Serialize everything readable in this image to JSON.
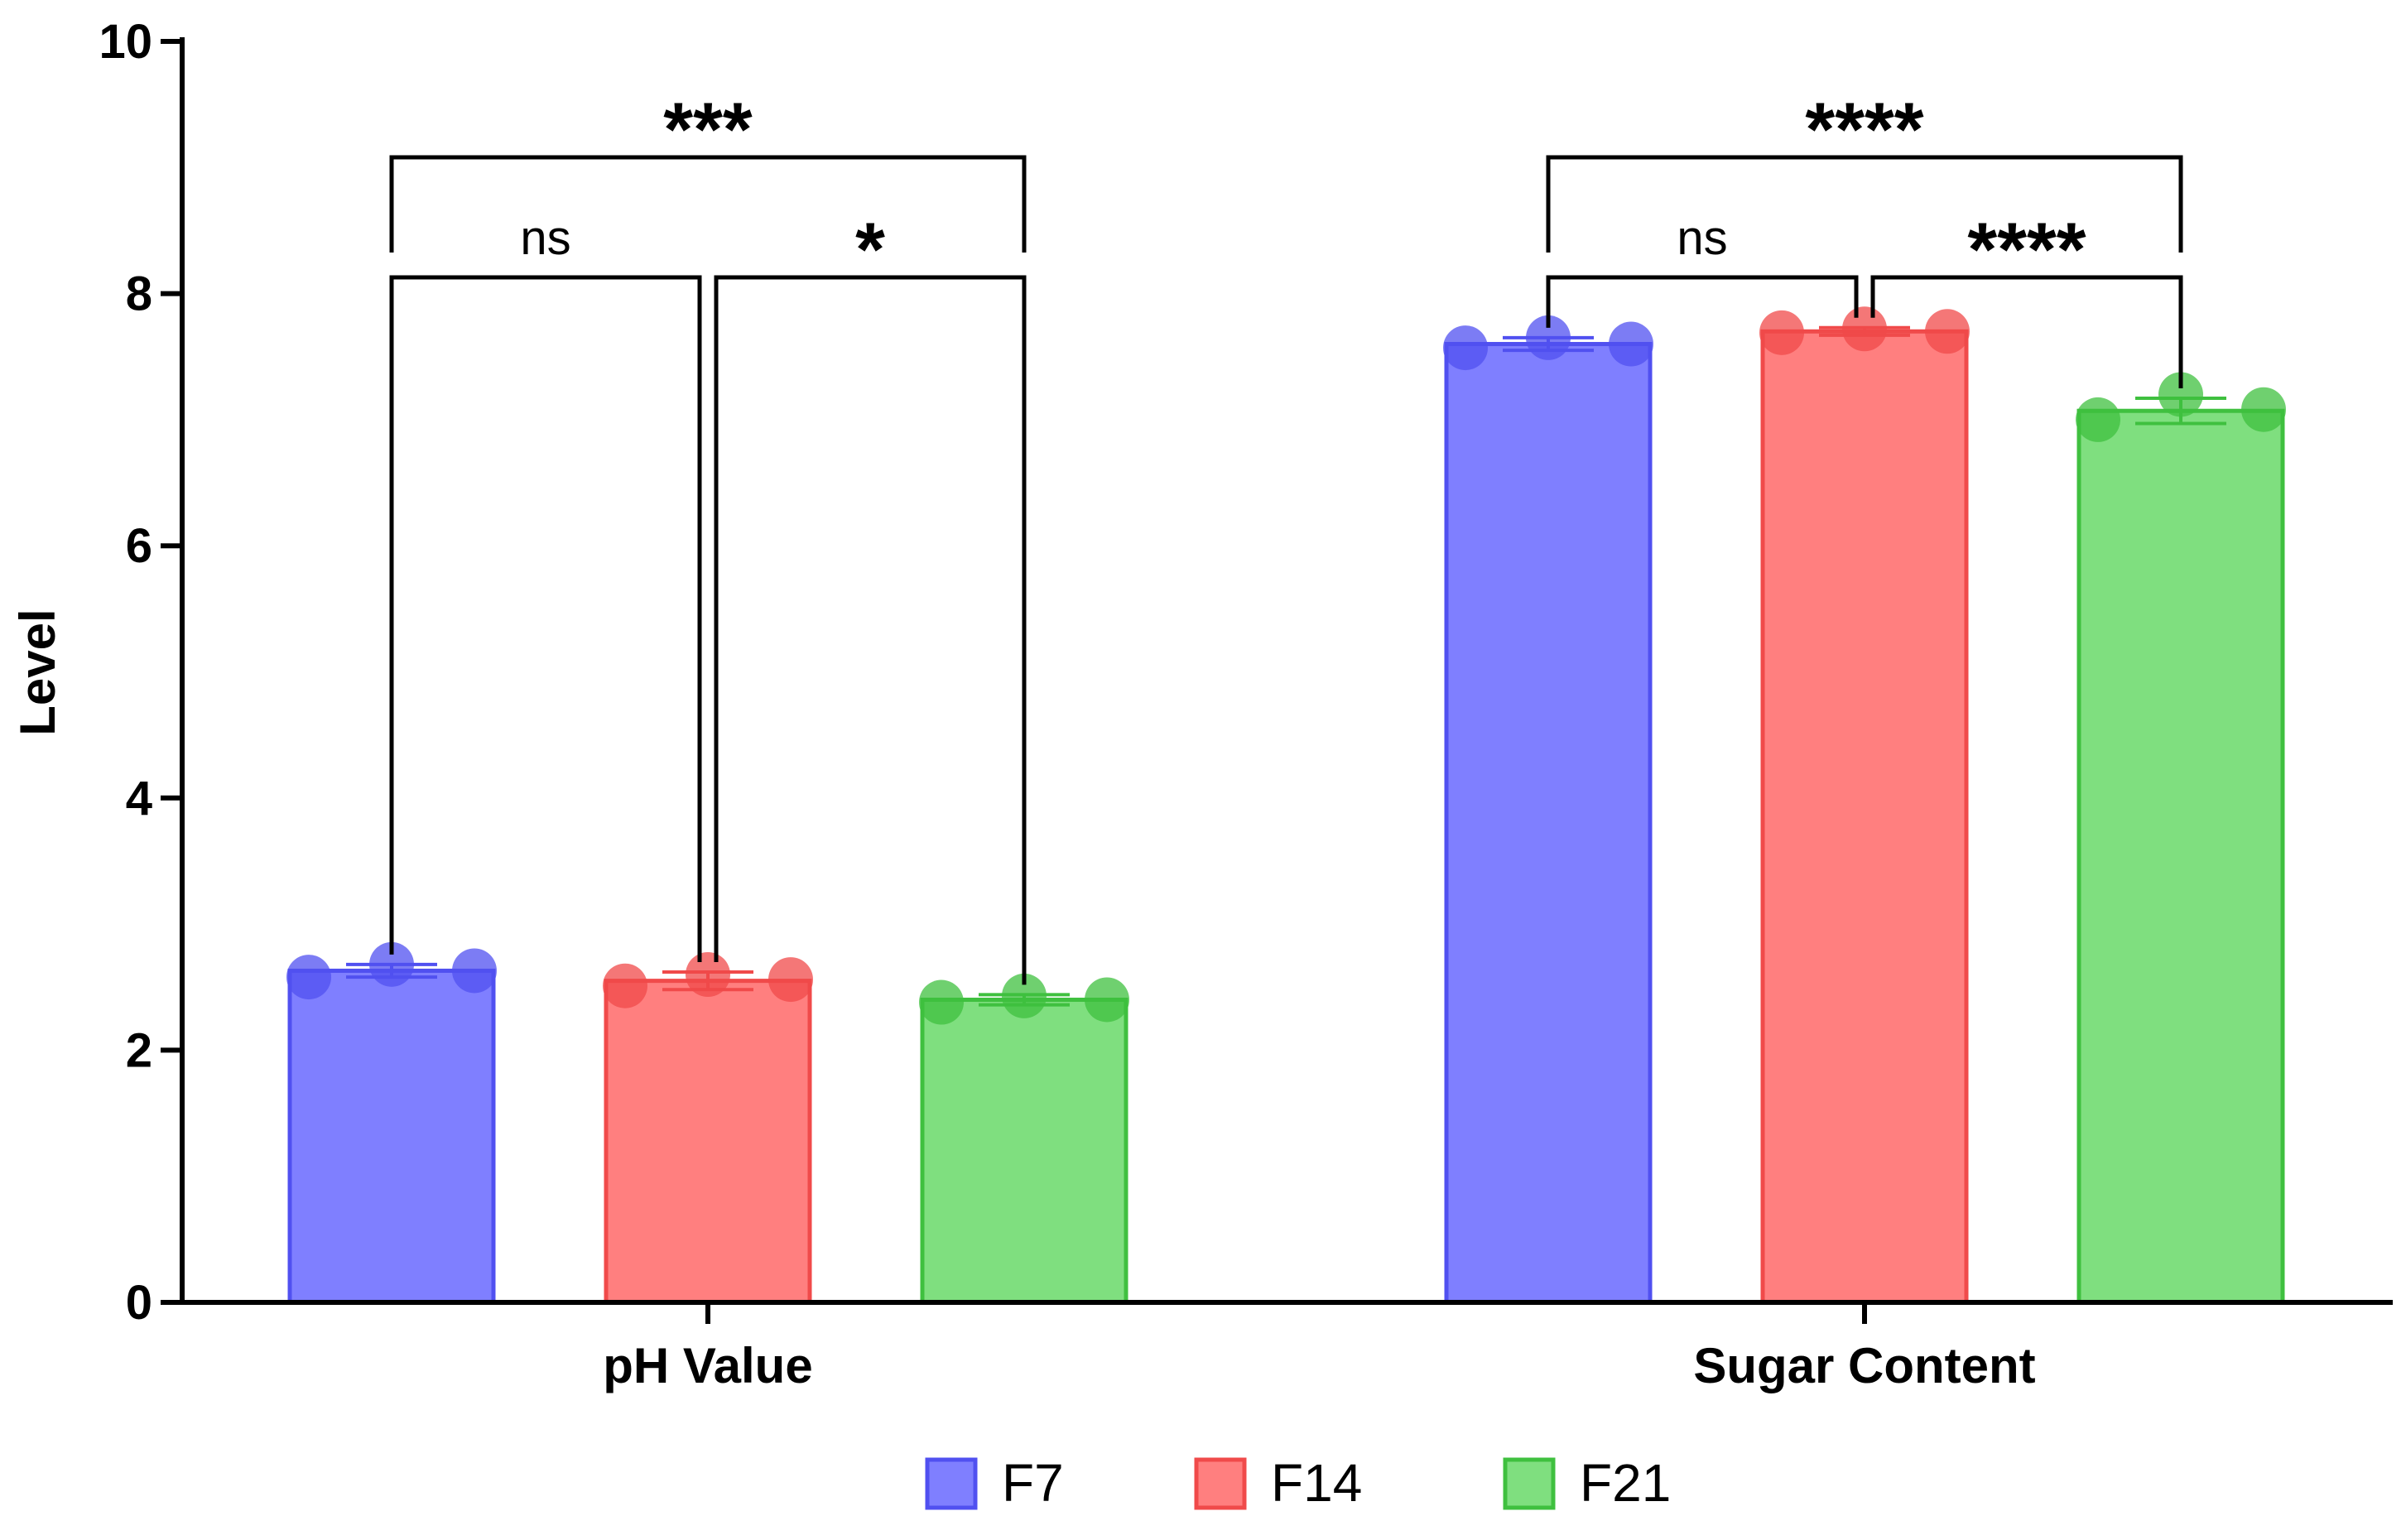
{
  "chart_data": {
    "type": "bar",
    "title": "",
    "xlabel": "",
    "ylabel": "Level",
    "ylim": [
      0,
      10
    ],
    "yticks": [
      "0",
      "2",
      "4",
      "6",
      "8",
      "10"
    ],
    "categories": [
      "pH Value",
      "Sugar Content"
    ],
    "series": [
      {
        "name": "F7",
        "color": "#7f7fff",
        "edge": "#5050f0",
        "values": [
          2.63,
          7.6
        ],
        "points": [
          [
            2.58,
            2.68,
            2.63
          ],
          [
            7.57,
            7.65,
            7.6
          ]
        ],
        "errors": [
          0.05,
          0.05
        ]
      },
      {
        "name": "F14",
        "color": "#ff7f7f",
        "edge": "#f04a4a",
        "values": [
          2.55,
          7.7
        ],
        "points": [
          [
            2.51,
            2.6,
            2.56
          ],
          [
            7.69,
            7.72,
            7.7
          ]
        ],
        "errors": [
          0.07,
          0.03
        ]
      },
      {
        "name": "F21",
        "color": "#7fdf7f",
        "edge": "#3fc03f",
        "values": [
          2.4,
          7.07
        ],
        "points": [
          [
            2.38,
            2.43,
            2.4
          ],
          [
            7.0,
            7.2,
            7.08
          ]
        ],
        "errors": [
          0.04,
          0.1
        ]
      }
    ],
    "annotations": [
      {
        "group": 0,
        "from": 0,
        "to": 1,
        "label": "ns"
      },
      {
        "group": 0,
        "from": 1,
        "to": 2,
        "label": "*"
      },
      {
        "group": 0,
        "from": 0,
        "to": 2,
        "label": "***"
      },
      {
        "group": 1,
        "from": 0,
        "to": 1,
        "label": "ns"
      },
      {
        "group": 1,
        "from": 1,
        "to": 2,
        "label": "****"
      },
      {
        "group": 1,
        "from": 0,
        "to": 2,
        "label": "****"
      }
    ],
    "legend": [
      "F7",
      "F14",
      "F21"
    ],
    "legend_position": "bottom-center"
  }
}
